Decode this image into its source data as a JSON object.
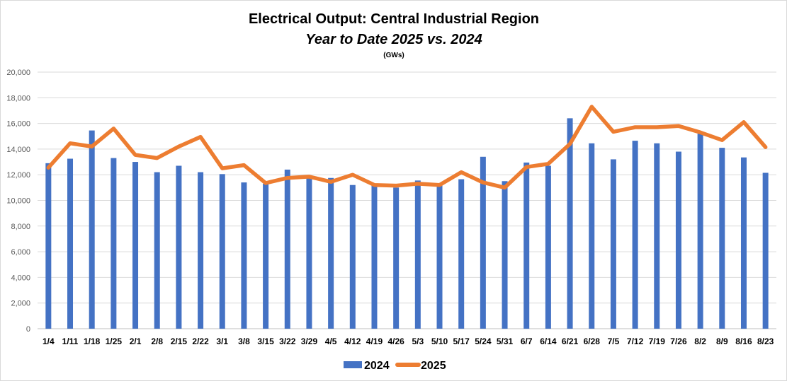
{
  "chart_data": {
    "type": "bar",
    "title": "Electrical Output:  Central Industrial Region",
    "subtitle": "Year to Date 2025 vs. 2024",
    "unit": "(GWs)",
    "ylim": [
      0,
      20000
    ],
    "yticks": [
      0,
      2000,
      4000,
      6000,
      8000,
      10000,
      12000,
      14000,
      16000,
      18000,
      20000
    ],
    "ytick_labels": [
      "0",
      "2,000",
      "4,000",
      "6,000",
      "8,000",
      "10,000",
      "12,000",
      "14,000",
      "16,000",
      "18,000",
      "20,000"
    ],
    "grid": true,
    "legend_position": "bottom",
    "categories": [
      "1/4",
      "1/11",
      "1/18",
      "1/25",
      "2/1",
      "2/8",
      "2/15",
      "2/22",
      "3/1",
      "3/8",
      "3/15",
      "3/22",
      "3/29",
      "4/5",
      "4/12",
      "4/19",
      "4/26",
      "5/3",
      "5/10",
      "5/17",
      "5/24",
      "5/31",
      "6/7",
      "6/14",
      "6/21",
      "6/28",
      "7/5",
      "7/12",
      "7/19",
      "7/26",
      "8/2",
      "8/9",
      "8/16",
      "8/23"
    ],
    "series": [
      {
        "name": "2024",
        "type": "bar",
        "color": "#4472C4",
        "values": [
          12900,
          13250,
          15450,
          13300,
          13000,
          12200,
          12700,
          12200,
          12050,
          11400,
          11300,
          12400,
          11800,
          11750,
          11200,
          11150,
          11000,
          11550,
          11250,
          11650,
          13400,
          11500,
          12950,
          12700,
          16400,
          14450,
          13200,
          14650,
          14450,
          13800,
          15200,
          14100,
          13350,
          12150
        ]
      },
      {
        "name": "2025",
        "type": "line",
        "color": "#ED7D31",
        "values": [
          12550,
          14450,
          14200,
          15600,
          13550,
          13300,
          14200,
          14950,
          12500,
          12750,
          11350,
          11750,
          11850,
          11450,
          12000,
          11200,
          11150,
          11300,
          11200,
          12200,
          11400,
          11000,
          12600,
          12850,
          14400,
          17300,
          15350,
          15700,
          15700,
          15800,
          15300,
          14700,
          16100,
          14150
        ]
      }
    ]
  }
}
